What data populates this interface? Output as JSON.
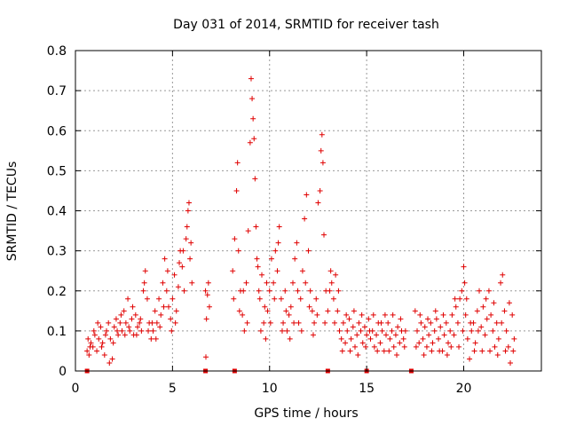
{
  "chart_data": {
    "type": "scatter",
    "title": "Day 031 of 2014, SRMTID for receiver tash",
    "xlabel": "GPS time / hours",
    "ylabel": "SRMTID / TECUs",
    "xlim": [
      0,
      24
    ],
    "ylim": [
      0,
      0.8
    ],
    "xticks": [
      0,
      5,
      10,
      15,
      20
    ],
    "yticks": [
      0,
      0.1,
      0.2,
      0.3,
      0.4,
      0.5,
      0.6,
      0.7,
      0.8
    ],
    "xtick_labels": [
      "0",
      "5",
      "10",
      "15",
      "20"
    ],
    "ytick_labels": [
      "0",
      "0.1",
      "0.2",
      "0.3",
      "0.4",
      "0.5",
      "0.6",
      "0.7",
      "0.8"
    ],
    "grid": true,
    "marker": "+",
    "color": "#e00000",
    "series": [
      {
        "name": "SRMTID",
        "points": [
          [
            0.6,
            0.05
          ],
          [
            0.7,
            0.04
          ],
          [
            0.8,
            0.07
          ],
          [
            0.9,
            0.06
          ],
          [
            1.0,
            0.09
          ],
          [
            1.1,
            0.05
          ],
          [
            1.2,
            0.08
          ],
          [
            1.3,
            0.11
          ],
          [
            1.4,
            0.07
          ],
          [
            1.5,
            0.04
          ],
          [
            1.6,
            0.1
          ],
          [
            1.7,
            0.12
          ],
          [
            1.8,
            0.08
          ],
          [
            1.9,
            0.03
          ],
          [
            2.0,
            0.11
          ],
          [
            2.1,
            0.13
          ],
          [
            2.2,
            0.09
          ],
          [
            2.3,
            0.12
          ],
          [
            2.4,
            0.1
          ],
          [
            2.5,
            0.15
          ],
          [
            2.6,
            0.12
          ],
          [
            2.7,
            0.18
          ],
          [
            2.8,
            0.1
          ],
          [
            2.9,
            0.13
          ],
          [
            3.0,
            0.09
          ],
          [
            3.1,
            0.14
          ],
          [
            3.2,
            0.11
          ],
          [
            3.3,
            0.12
          ],
          [
            3.4,
            0.1
          ],
          [
            3.5,
            0.2
          ],
          [
            3.6,
            0.25
          ],
          [
            3.7,
            0.18
          ],
          [
            3.8,
            0.12
          ],
          [
            3.9,
            0.08
          ],
          [
            4.0,
            0.1
          ],
          [
            4.1,
            0.15
          ],
          [
            4.2,
            0.12
          ],
          [
            4.3,
            0.18
          ],
          [
            4.4,
            0.14
          ],
          [
            4.5,
            0.22
          ],
          [
            4.6,
            0.28
          ],
          [
            4.7,
            0.2
          ],
          [
            4.8,
            0.16
          ],
          [
            4.9,
            0.13
          ],
          [
            5.0,
            0.18
          ],
          [
            5.1,
            0.24
          ],
          [
            5.2,
            0.15
          ],
          [
            5.3,
            0.21
          ],
          [
            5.4,
            0.3
          ],
          [
            5.5,
            0.26
          ],
          [
            5.6,
            0.2
          ],
          [
            5.7,
            0.33
          ],
          [
            5.8,
            0.4
          ],
          [
            5.85,
            0.42
          ],
          [
            5.9,
            0.28
          ],
          [
            6.0,
            0.22
          ],
          [
            0.65,
            0.08
          ],
          [
            0.75,
            0.06
          ],
          [
            0.95,
            0.1
          ],
          [
            1.15,
            0.12
          ],
          [
            1.35,
            0.06
          ],
          [
            1.55,
            0.09
          ],
          [
            1.75,
            0.02
          ],
          [
            1.95,
            0.07
          ],
          [
            2.15,
            0.1
          ],
          [
            2.35,
            0.14
          ],
          [
            2.55,
            0.09
          ],
          [
            2.75,
            0.11
          ],
          [
            2.95,
            0.16
          ],
          [
            3.15,
            0.09
          ],
          [
            3.35,
            0.13
          ],
          [
            3.55,
            0.22
          ],
          [
            3.75,
            0.1
          ],
          [
            3.95,
            0.12
          ],
          [
            4.15,
            0.08
          ],
          [
            4.35,
            0.11
          ],
          [
            4.55,
            0.16
          ],
          [
            4.75,
            0.25
          ],
          [
            4.95,
            0.1
          ],
          [
            5.15,
            0.12
          ],
          [
            5.35,
            0.27
          ],
          [
            5.55,
            0.3
          ],
          [
            5.75,
            0.36
          ],
          [
            5.95,
            0.32
          ],
          [
            6.7,
            0.2
          ],
          [
            6.75,
            0.13
          ],
          [
            6.8,
            0.19
          ],
          [
            6.85,
            0.22
          ],
          [
            6.9,
            0.16
          ],
          [
            6.72,
            0.035
          ],
          [
            8.1,
            0.25
          ],
          [
            8.2,
            0.33
          ],
          [
            8.3,
            0.45
          ],
          [
            8.35,
            0.52
          ],
          [
            8.4,
            0.3
          ],
          [
            8.5,
            0.2
          ],
          [
            8.6,
            0.14
          ],
          [
            8.7,
            0.1
          ],
          [
            8.8,
            0.22
          ],
          [
            8.9,
            0.35
          ],
          [
            9.0,
            0.57
          ],
          [
            9.05,
            0.73
          ],
          [
            9.1,
            0.68
          ],
          [
            9.15,
            0.63
          ],
          [
            9.2,
            0.58
          ],
          [
            9.25,
            0.48
          ],
          [
            9.3,
            0.36
          ],
          [
            9.4,
            0.26
          ],
          [
            9.5,
            0.18
          ],
          [
            9.6,
            0.24
          ],
          [
            9.7,
            0.12
          ],
          [
            9.8,
            0.08
          ],
          [
            9.9,
            0.15
          ],
          [
            10.0,
            0.2
          ],
          [
            10.1,
            0.28
          ],
          [
            10.2,
            0.22
          ],
          [
            10.3,
            0.3
          ],
          [
            10.4,
            0.25
          ],
          [
            10.5,
            0.36
          ],
          [
            10.6,
            0.18
          ],
          [
            10.7,
            0.12
          ],
          [
            10.8,
            0.2
          ],
          [
            10.9,
            0.1
          ],
          [
            11.0,
            0.14
          ],
          [
            11.1,
            0.16
          ],
          [
            11.2,
            0.22
          ],
          [
            11.3,
            0.28
          ],
          [
            11.4,
            0.32
          ],
          [
            11.5,
            0.12
          ],
          [
            11.6,
            0.18
          ],
          [
            11.7,
            0.25
          ],
          [
            11.8,
            0.38
          ],
          [
            11.9,
            0.44
          ],
          [
            12.0,
            0.3
          ],
          [
            12.1,
            0.2
          ],
          [
            12.2,
            0.15
          ],
          [
            12.3,
            0.12
          ],
          [
            12.4,
            0.18
          ],
          [
            12.5,
            0.42
          ],
          [
            12.6,
            0.45
          ],
          [
            12.65,
            0.55
          ],
          [
            12.7,
            0.59
          ],
          [
            12.75,
            0.52
          ],
          [
            12.8,
            0.34
          ],
          [
            12.9,
            0.2
          ],
          [
            13.0,
            0.15
          ],
          [
            8.15,
            0.18
          ],
          [
            8.45,
            0.15
          ],
          [
            8.65,
            0.2
          ],
          [
            8.85,
            0.12
          ],
          [
            9.35,
            0.28
          ],
          [
            9.45,
            0.2
          ],
          [
            9.55,
            0.1
          ],
          [
            9.75,
            0.16
          ],
          [
            9.85,
            0.22
          ],
          [
            10.05,
            0.12
          ],
          [
            10.25,
            0.18
          ],
          [
            10.45,
            0.32
          ],
          [
            10.65,
            0.1
          ],
          [
            10.85,
            0.15
          ],
          [
            11.05,
            0.08
          ],
          [
            11.25,
            0.12
          ],
          [
            11.45,
            0.2
          ],
          [
            11.65,
            0.1
          ],
          [
            11.85,
            0.22
          ],
          [
            12.05,
            0.16
          ],
          [
            12.25,
            0.09
          ],
          [
            12.45,
            0.14
          ],
          [
            12.85,
            0.12
          ],
          [
            13.1,
            0.2
          ],
          [
            13.2,
            0.22
          ],
          [
            13.3,
            0.18
          ],
          [
            13.4,
            0.24
          ],
          [
            13.5,
            0.15
          ],
          [
            13.6,
            0.1
          ],
          [
            13.7,
            0.08
          ],
          [
            13.8,
            0.12
          ],
          [
            13.9,
            0.07
          ],
          [
            14.0,
            0.1
          ],
          [
            14.1,
            0.13
          ],
          [
            14.2,
            0.08
          ],
          [
            14.3,
            0.11
          ],
          [
            14.4,
            0.06
          ],
          [
            14.5,
            0.09
          ],
          [
            14.6,
            0.12
          ],
          [
            14.7,
            0.1
          ],
          [
            14.8,
            0.07
          ],
          [
            14.9,
            0.11
          ],
          [
            15.0,
            0.09
          ],
          [
            15.1,
            0.13
          ],
          [
            15.2,
            0.08
          ],
          [
            15.3,
            0.1
          ],
          [
            15.4,
            0.06
          ],
          [
            15.5,
            0.09
          ],
          [
            15.6,
            0.12
          ],
          [
            15.7,
            0.07
          ],
          [
            15.8,
            0.1
          ],
          [
            15.9,
            0.05
          ],
          [
            16.0,
            0.09
          ],
          [
            16.1,
            0.12
          ],
          [
            16.2,
            0.08
          ],
          [
            16.3,
            0.1
          ],
          [
            16.4,
            0.06
          ],
          [
            16.5,
            0.09
          ],
          [
            16.6,
            0.11
          ],
          [
            16.7,
            0.07
          ],
          [
            16.8,
            0.1
          ],
          [
            16.9,
            0.08
          ],
          [
            17.0,
            0.1
          ],
          [
            13.15,
            0.25
          ],
          [
            13.35,
            0.12
          ],
          [
            13.55,
            0.2
          ],
          [
            13.75,
            0.05
          ],
          [
            13.95,
            0.14
          ],
          [
            14.15,
            0.05
          ],
          [
            14.35,
            0.15
          ],
          [
            14.55,
            0.04
          ],
          [
            14.75,
            0.14
          ],
          [
            14.95,
            0.06
          ],
          [
            15.15,
            0.1
          ],
          [
            15.35,
            0.14
          ],
          [
            15.55,
            0.05
          ],
          [
            15.75,
            0.12
          ],
          [
            15.95,
            0.14
          ],
          [
            16.15,
            0.05
          ],
          [
            16.35,
            0.14
          ],
          [
            16.55,
            0.04
          ],
          [
            16.75,
            0.13
          ],
          [
            16.95,
            0.06
          ],
          [
            17.5,
            0.15
          ],
          [
            17.6,
            0.1
          ],
          [
            17.7,
            0.07
          ],
          [
            17.8,
            0.12
          ],
          [
            17.9,
            0.08
          ],
          [
            18.0,
            0.11
          ],
          [
            18.1,
            0.06
          ],
          [
            18.2,
            0.09
          ],
          [
            18.3,
            0.12
          ],
          [
            18.4,
            0.07
          ],
          [
            18.5,
            0.1
          ],
          [
            18.6,
            0.13
          ],
          [
            18.7,
            0.08
          ],
          [
            18.8,
            0.11
          ],
          [
            18.9,
            0.05
          ],
          [
            19.0,
            0.09
          ],
          [
            19.1,
            0.12
          ],
          [
            19.2,
            0.07
          ],
          [
            19.3,
            0.1
          ],
          [
            19.4,
            0.14
          ],
          [
            19.5,
            0.09
          ],
          [
            19.6,
            0.16
          ],
          [
            19.7,
            0.12
          ],
          [
            19.8,
            0.18
          ],
          [
            19.9,
            0.2
          ],
          [
            20.0,
            0.26
          ],
          [
            20.05,
            0.22
          ],
          [
            20.1,
            0.14
          ],
          [
            20.2,
            0.08
          ],
          [
            20.3,
            0.03
          ],
          [
            20.4,
            0.1
          ],
          [
            20.5,
            0.12
          ],
          [
            20.6,
            0.07
          ],
          [
            20.7,
            0.15
          ],
          [
            20.8,
            0.2
          ],
          [
            20.9,
            0.11
          ],
          [
            21.0,
            0.16
          ],
          [
            21.1,
            0.09
          ],
          [
            21.2,
            0.13
          ],
          [
            21.3,
            0.2
          ],
          [
            21.4,
            0.14
          ],
          [
            21.5,
            0.1
          ],
          [
            21.6,
            0.06
          ],
          [
            21.7,
            0.12
          ],
          [
            21.8,
            0.08
          ],
          [
            21.9,
            0.22
          ],
          [
            22.0,
            0.24
          ],
          [
            22.1,
            0.15
          ],
          [
            22.2,
            0.1
          ],
          [
            22.3,
            0.06
          ],
          [
            22.4,
            0.02
          ],
          [
            22.5,
            0.14
          ],
          [
            22.6,
            0.08
          ],
          [
            17.55,
            0.06
          ],
          [
            17.75,
            0.14
          ],
          [
            17.95,
            0.04
          ],
          [
            18.15,
            0.13
          ],
          [
            18.35,
            0.05
          ],
          [
            18.55,
            0.15
          ],
          [
            18.75,
            0.05
          ],
          [
            18.95,
            0.14
          ],
          [
            19.15,
            0.04
          ],
          [
            19.35,
            0.06
          ],
          [
            19.55,
            0.18
          ],
          [
            19.75,
            0.06
          ],
          [
            19.95,
            0.1
          ],
          [
            20.15,
            0.18
          ],
          [
            20.35,
            0.12
          ],
          [
            20.55,
            0.05
          ],
          [
            20.75,
            0.1
          ],
          [
            20.95,
            0.05
          ],
          [
            21.15,
            0.18
          ],
          [
            21.35,
            0.05
          ],
          [
            21.55,
            0.17
          ],
          [
            21.75,
            0.04
          ],
          [
            21.95,
            0.12
          ],
          [
            22.15,
            0.05
          ],
          [
            22.35,
            0.17
          ],
          [
            22.55,
            0.05
          ]
        ]
      }
    ],
    "gap_markers": [
      0.6,
      6.7,
      8.2,
      13.0,
      15.0,
      17.3
    ]
  }
}
